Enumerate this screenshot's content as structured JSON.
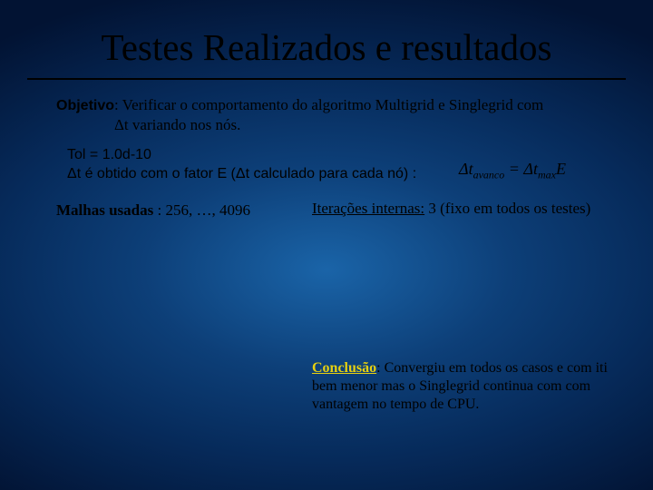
{
  "title": "Testes Realizados e resultados",
  "objetivo": {
    "label": "Objetivo",
    "line1": ": Verificar o comportamento do algoritmo Multigrid e Singlegrid com",
    "line2": "Δt variando nos nós."
  },
  "tol": "Tol = 1.0d-10",
  "dt": "Δt é obtido com o fator E (Δt calculado para cada nó) :",
  "formula": {
    "lhs_delta": "Δ",
    "lhs_t": "t",
    "lhs_sub": "avanco",
    "eq": " = ",
    "rhs_delta": "Δ",
    "rhs_t": "t",
    "rhs_sub": "max",
    "E": "E"
  },
  "malhas": {
    "label": "Malhas usadas",
    "rest": " : 256, …, 4096"
  },
  "iter": {
    "label": "Iterações internas:",
    "rest": " 3 (fixo em todos os testes)"
  },
  "conclusao": {
    "label": "Conclusão",
    "text": ": Convergiu em todos os casos e com iti bem menor mas o Singlegrid continua com com vantagem no tempo de CPU."
  }
}
